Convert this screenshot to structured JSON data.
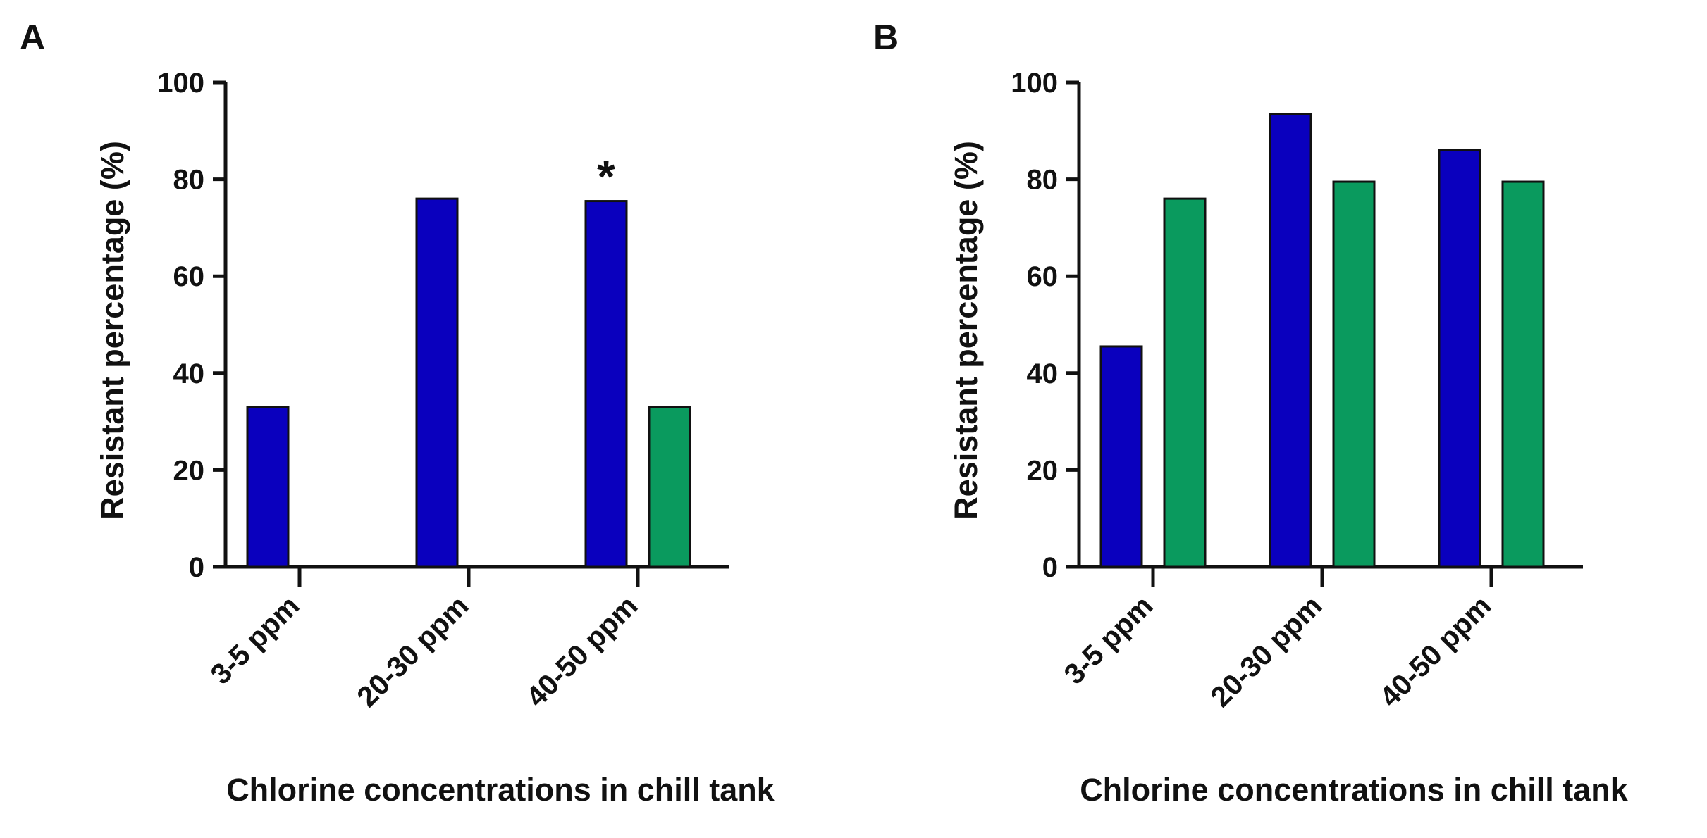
{
  "chart_data": [
    {
      "panel_label": "A",
      "type": "bar",
      "categories": [
        "3-5 ppm",
        "20-30 ppm",
        "40-50 ppm"
      ],
      "series": [
        {
          "name": "blue series",
          "color": "#0A00BE",
          "values": [
            33,
            76,
            75.5
          ]
        },
        {
          "name": "green series",
          "color": "#0A9A5E",
          "values": [
            0,
            0,
            33
          ]
        }
      ],
      "xlabel": "Chlorine concentrations in chill tank",
      "ylabel": "Resistant percentage (%)",
      "ylim": [
        0,
        100
      ],
      "yticks": [
        "0",
        "20",
        "40",
        "60",
        "80",
        "100"
      ],
      "annotations": [
        {
          "text": "*",
          "category_index": 2,
          "series_index": 0
        }
      ]
    },
    {
      "panel_label": "B",
      "type": "bar",
      "categories": [
        "3-5 ppm",
        "20-30 ppm",
        "40-50 ppm"
      ],
      "series": [
        {
          "name": "blue series",
          "color": "#0A00BE",
          "values": [
            45.5,
            93.5,
            86
          ]
        },
        {
          "name": "green series",
          "color": "#0A9A5E",
          "values": [
            76,
            79.5,
            79.5
          ]
        }
      ],
      "xlabel": "Chlorine concentrations in chill tank",
      "ylabel": "Resistant percentage (%)",
      "ylim": [
        0,
        100
      ],
      "yticks": [
        "0",
        "20",
        "40",
        "60",
        "80",
        "100"
      ],
      "annotations": []
    }
  ]
}
